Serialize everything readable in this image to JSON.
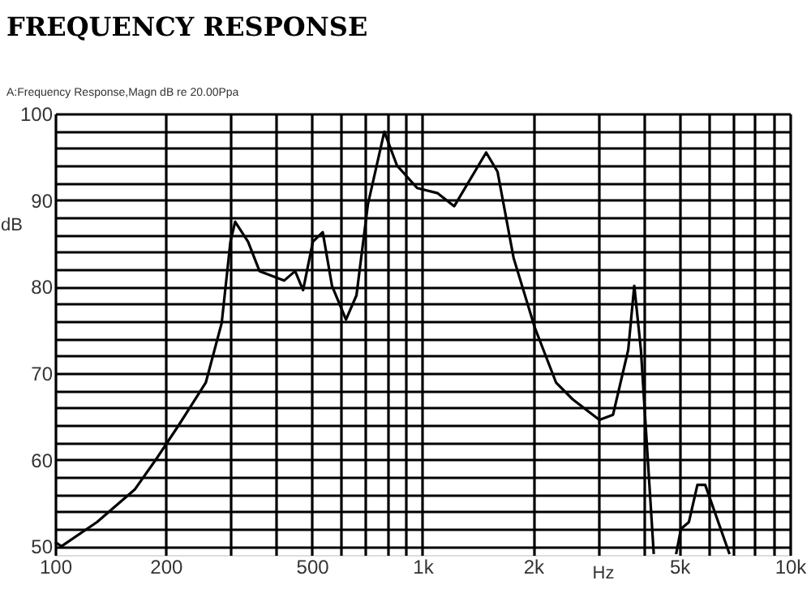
{
  "chart_data": {
    "type": "line",
    "title": "FREQUENCY RESPONSE",
    "subtitle": "A:Frequency Response,Magn dB re 20.00Ppa",
    "xlabel": "Hz",
    "ylabel": "dB",
    "log": "x",
    "grid": true,
    "marker": "none",
    "line_style": "solid",
    "x": [
      100,
      104,
      130,
      165,
      190,
      217,
      257,
      284,
      300,
      309,
      335,
      360,
      420,
      450,
      473,
      503,
      535,
      567,
      619,
      661,
      710,
      787,
      852,
      967,
      1100,
      1220,
      1490,
      1600,
      1770,
      2020,
      2310,
      2560,
      3030,
      3300,
      3630,
      3770,
      3930,
      4260,
      4600,
      4900,
      5050,
      5310,
      5600,
      5880,
      6850
    ],
    "series": [
      {
        "color": "#000000",
        "values": [
          50.5,
          50,
          52.8,
          56.6,
          60.3,
          64,
          68.9,
          75.8,
          85.2,
          87.5,
          85.2,
          81.8,
          80.7,
          81.8,
          79.6,
          85.2,
          86.3,
          80.1,
          76.2,
          79,
          89.5,
          97.9,
          94,
          91.4,
          90.8,
          89.3,
          95.5,
          93.3,
          83.3,
          75.3,
          68.9,
          67,
          64.6,
          65.2,
          72.7,
          80.1,
          72.7,
          49.1,
          null,
          49.1,
          52,
          52.8,
          57.1,
          57.1,
          49.1
        ]
      }
    ],
    "xlim": [
      100,
      10000
    ],
    "ylim": [
      49,
      100
    ],
    "xticks": [
      100,
      200,
      {
        "value": 300,
        "label": null
      },
      {
        "value": 400,
        "label": null
      },
      500,
      {
        "value": 600,
        "label": null
      },
      {
        "value": 700,
        "label": null
      },
      {
        "value": 800,
        "label": null
      },
      {
        "value": 900,
        "label": null
      },
      {
        "value": 1000,
        "label": "1k"
      },
      {
        "value": 2000,
        "label": "2k"
      },
      {
        "value": 3000,
        "label": null
      },
      {
        "value": 4000,
        "label": null
      },
      {
        "value": 5000,
        "label": "5k"
      },
      {
        "value": 6000,
        "label": null
      },
      {
        "value": 7000,
        "label": null
      },
      {
        "value": 8000,
        "label": null
      },
      {
        "value": 9000,
        "label": null
      },
      {
        "value": 10000,
        "label": "10k"
      }
    ],
    "yticks": [
      50,
      {
        "value": 52,
        "label": null
      },
      {
        "value": 54,
        "label": null
      },
      {
        "value": 56,
        "label": null
      },
      {
        "value": 58,
        "label": null
      },
      60,
      {
        "value": 62,
        "label": null
      },
      {
        "value": 64,
        "label": null
      },
      {
        "value": 66,
        "label": null
      },
      {
        "value": 68,
        "label": null
      },
      70,
      {
        "value": 72,
        "label": null
      },
      {
        "value": 74,
        "label": null
      },
      {
        "value": 76,
        "label": null
      },
      {
        "value": 78,
        "label": null
      },
      80,
      {
        "value": 82,
        "label": null
      },
      {
        "value": 84,
        "label": null
      },
      {
        "value": 86,
        "label": null
      },
      {
        "value": 88,
        "label": null
      },
      90,
      {
        "value": 92,
        "label": null
      },
      {
        "value": 94,
        "label": null
      },
      {
        "value": 96,
        "label": null
      },
      {
        "value": 98,
        "label": null
      },
      100
    ]
  }
}
